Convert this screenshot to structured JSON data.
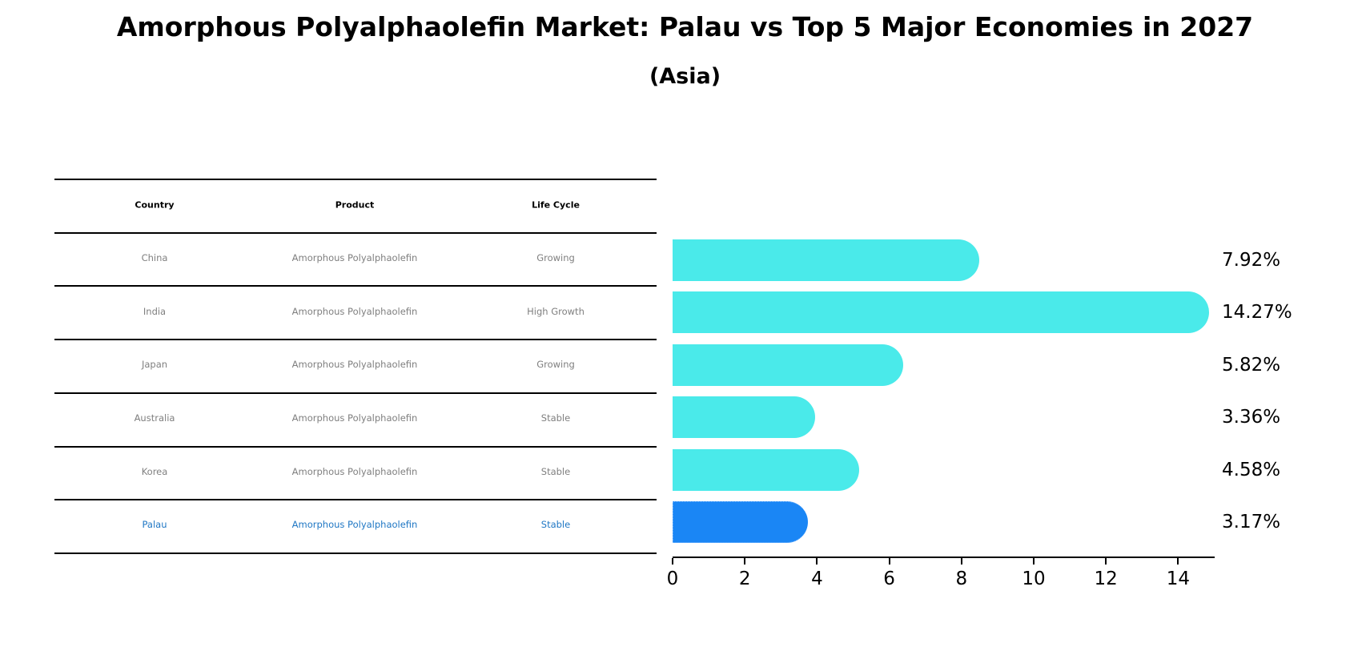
{
  "title": "Amorphous Polyalphaolefin Market: Palau vs Top 5 Major Economies in 2027",
  "subtitle": "(Asia)",
  "table": {
    "headers": [
      "Country",
      "Product",
      "Life Cycle"
    ],
    "rows": [
      {
        "country": "China",
        "product": "Amorphous Polyalphaolefin",
        "life_cycle": "Growing",
        "highlight": false
      },
      {
        "country": "India",
        "product": "Amorphous Polyalphaolefin",
        "life_cycle": "High Growth",
        "highlight": false
      },
      {
        "country": "Japan",
        "product": "Amorphous Polyalphaolefin",
        "life_cycle": "Growing",
        "highlight": false
      },
      {
        "country": "Australia",
        "product": "Amorphous Polyalphaolefin",
        "life_cycle": "Stable",
        "highlight": false
      },
      {
        "country": "Korea",
        "product": "Amorphous Polyalphaolefin",
        "life_cycle": "Stable",
        "highlight": false
      },
      {
        "country": "Palau",
        "product": "Amorphous Polyalphaolefin",
        "life_cycle": "Stable",
        "highlight": true
      }
    ]
  },
  "colors": {
    "bar": "#4aeaea",
    "highlight_bar": "#1a86f5",
    "highlight_text": "#1f77c4",
    "cell_text": "#7f7f7f"
  },
  "chart_data": {
    "type": "bar",
    "orientation": "horizontal",
    "title": "Amorphous Polyalphaolefin Market: Palau vs Top 5 Major Economies in 2027",
    "subtitle": "(Asia)",
    "categories": [
      "China",
      "India",
      "Japan",
      "Australia",
      "Korea",
      "Palau"
    ],
    "values": [
      7.92,
      14.27,
      5.82,
      3.36,
      4.58,
      3.17
    ],
    "value_labels": [
      "7.92%",
      "14.27%",
      "5.82%",
      "3.36%",
      "4.58%",
      "3.17%"
    ],
    "highlight": "Palau",
    "xlabel": "",
    "ylabel": "",
    "xlim": [
      0,
      15
    ],
    "xticks": [
      0,
      2,
      4,
      6,
      8,
      10,
      12,
      14
    ],
    "grid": false,
    "legend": null
  }
}
